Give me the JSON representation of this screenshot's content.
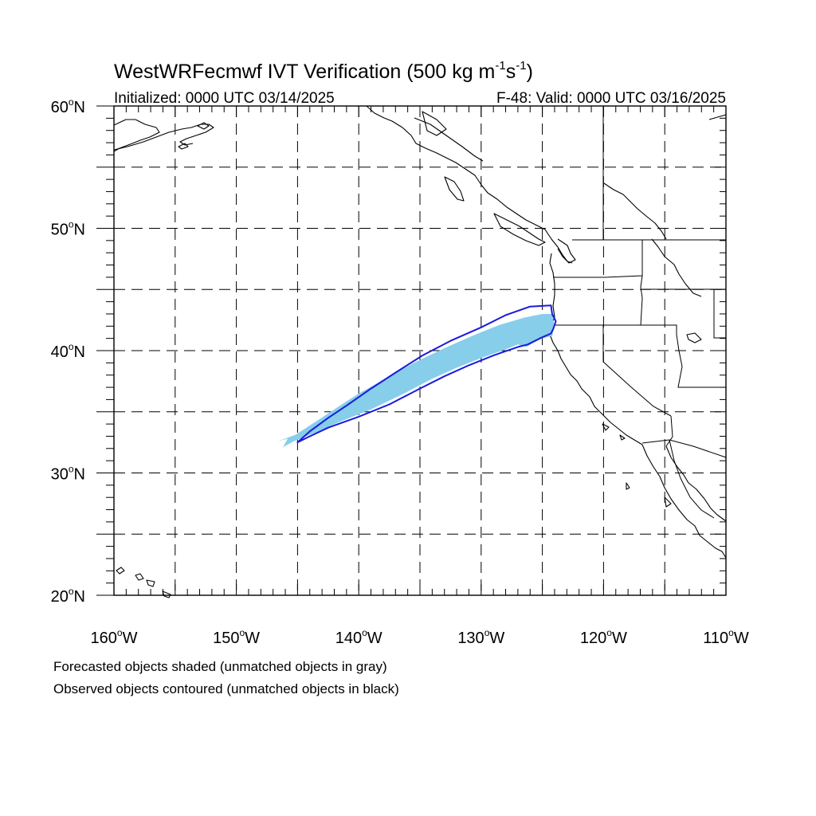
{
  "title": {
    "main": "WestWRFecmwf IVT Verification (500 kg m",
    "sup1": "-1",
    "mid": "s",
    "sup2": "-1",
    "end": ")"
  },
  "subtitle_left": "Initialized: 0000 UTC 03/14/2025",
  "subtitle_right": "F-48: Valid: 0000 UTC 03/16/2025",
  "map": {
    "lon_min": -160,
    "lon_max": -110,
    "lat_min": 20,
    "lat_max": 60,
    "x_ticks": [
      {
        "lon": -160,
        "label": "160",
        "suffix": "W"
      },
      {
        "lon": -150,
        "label": "150",
        "suffix": "W"
      },
      {
        "lon": -140,
        "label": "140",
        "suffix": "W"
      },
      {
        "lon": -130,
        "label": "130",
        "suffix": "W"
      },
      {
        "lon": -120,
        "label": "120",
        "suffix": "W"
      },
      {
        "lon": -110,
        "label": "110",
        "suffix": "W"
      }
    ],
    "y_ticks": [
      {
        "lat": 60,
        "label": "60",
        "suffix": "N"
      },
      {
        "lat": 50,
        "label": "50",
        "suffix": "N"
      },
      {
        "lat": 40,
        "label": "40",
        "suffix": "N"
      },
      {
        "lat": 30,
        "label": "30",
        "suffix": "N"
      },
      {
        "lat": 20,
        "label": "20",
        "suffix": "N"
      }
    ],
    "colors": {
      "forecast_fill": "#87ceeb",
      "observed_contour": "#1a1adc",
      "grid": "#000000"
    }
  },
  "forecast_object": [
    [
      -146.6,
      32.6
    ],
    [
      -145.2,
      33.1
    ],
    [
      -143.5,
      34.2
    ],
    [
      -142.0,
      35.2
    ],
    [
      -140.0,
      36.5
    ],
    [
      -138.0,
      37.6
    ],
    [
      -135.5,
      39.0
    ],
    [
      -133.0,
      40.2
    ],
    [
      -130.5,
      41.3
    ],
    [
      -128.5,
      42.1
    ],
    [
      -126.5,
      42.7
    ],
    [
      -125.0,
      43.0
    ],
    [
      -124.2,
      43.0
    ],
    [
      -124.0,
      42.0
    ],
    [
      -124.2,
      41.2
    ],
    [
      -125.0,
      41.0
    ],
    [
      -125.8,
      40.6
    ],
    [
      -126.3,
      40.3
    ],
    [
      -127.0,
      40.5
    ],
    [
      -128.0,
      40.1
    ],
    [
      -130.0,
      39.4
    ],
    [
      -132.0,
      38.6
    ],
    [
      -134.0,
      37.7
    ],
    [
      -136.5,
      36.4
    ],
    [
      -139.0,
      35.2
    ],
    [
      -141.5,
      34.2
    ],
    [
      -143.5,
      33.3
    ],
    [
      -145.3,
      32.6
    ],
    [
      -146.2,
      32.1
    ],
    [
      -145.8,
      32.8
    ]
  ],
  "observed_object": [
    [
      -145.0,
      32.5
    ],
    [
      -144.0,
      33.4
    ],
    [
      -142.5,
      34.5
    ],
    [
      -141.0,
      35.5
    ],
    [
      -139.0,
      36.9
    ],
    [
      -137.0,
      38.2
    ],
    [
      -134.8,
      39.6
    ],
    [
      -132.5,
      40.8
    ],
    [
      -130.0,
      41.9
    ],
    [
      -128.0,
      42.9
    ],
    [
      -126.0,
      43.6
    ],
    [
      -124.3,
      43.7
    ],
    [
      -124.2,
      43.0
    ],
    [
      -123.9,
      42.4
    ],
    [
      -124.1,
      41.8
    ],
    [
      -124.3,
      41.4
    ],
    [
      -125.2,
      41.0
    ],
    [
      -126.2,
      40.5
    ],
    [
      -127.0,
      40.3
    ],
    [
      -129.0,
      39.6
    ],
    [
      -131.0,
      38.8
    ],
    [
      -133.0,
      37.9
    ],
    [
      -135.0,
      36.9
    ],
    [
      -137.5,
      35.6
    ],
    [
      -140.0,
      34.6
    ],
    [
      -142.5,
      33.7
    ],
    [
      -144.2,
      32.9
    ]
  ],
  "footnote_1": "Forecasted objects shaded (unmatched objects in gray)",
  "footnote_2": "Observed objects contoured (unmatched objects in black)"
}
